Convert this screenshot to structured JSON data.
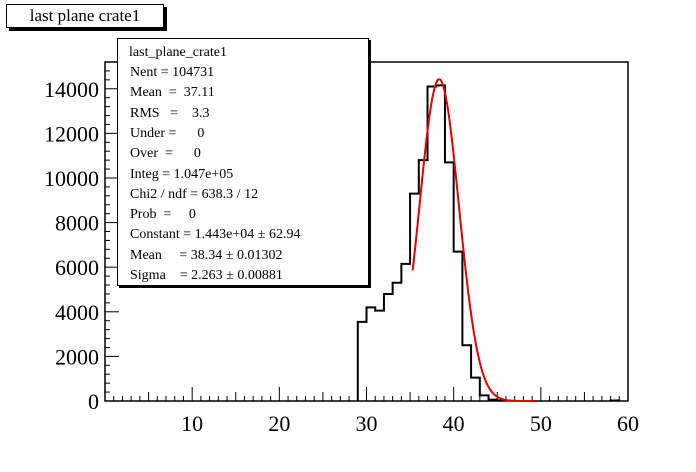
{
  "title": "last plane crate1",
  "stats": {
    "name": "last_plane_crate1",
    "rows": [
      "Nent = 104731",
      "Mean  =  37.11",
      "RMS   =    3.3",
      "Under =      0",
      "Over  =      0",
      "Integ = 1.047e+05",
      "Chi2 / ndf = 638.3 / 12",
      "Prob  =     0",
      "Constant = 1.443e+04 ± 62.94",
      "Mean     = 38.34 ± 0.01302",
      "Sigma    = 2.263 ± 0.00881"
    ]
  },
  "chart_data": {
    "type": "bar",
    "title": "last plane crate1",
    "xlim": [
      0,
      60
    ],
    "ylim": [
      0,
      15200
    ],
    "xticks": [
      10,
      20,
      30,
      40,
      50,
      60
    ],
    "yticks": [
      0,
      2000,
      4000,
      6000,
      8000,
      10000,
      12000,
      14000
    ],
    "bin_width": 1,
    "bins": [
      {
        "x": 29,
        "y": 3550
      },
      {
        "x": 30,
        "y": 4200
      },
      {
        "x": 31,
        "y": 4050
      },
      {
        "x": 32,
        "y": 4800
      },
      {
        "x": 33,
        "y": 5300
      },
      {
        "x": 34,
        "y": 6150
      },
      {
        "x": 35,
        "y": 9300
      },
      {
        "x": 36,
        "y": 10800
      },
      {
        "x": 37,
        "y": 14100
      },
      {
        "x": 38,
        "y": 14150
      },
      {
        "x": 39,
        "y": 10700
      },
      {
        "x": 40,
        "y": 6700
      },
      {
        "x": 41,
        "y": 2500
      },
      {
        "x": 42,
        "y": 1050
      },
      {
        "x": 43,
        "y": 250
      },
      {
        "x": 44,
        "y": 60
      },
      {
        "x": 45,
        "y": 20
      },
      {
        "x": 58,
        "y": 20
      }
    ],
    "fit": {
      "type": "gaus",
      "constant": 14430,
      "mean": 38.34,
      "sigma": 2.263,
      "range": [
        35.3,
        49.5
      ],
      "color": "#e00000"
    }
  }
}
